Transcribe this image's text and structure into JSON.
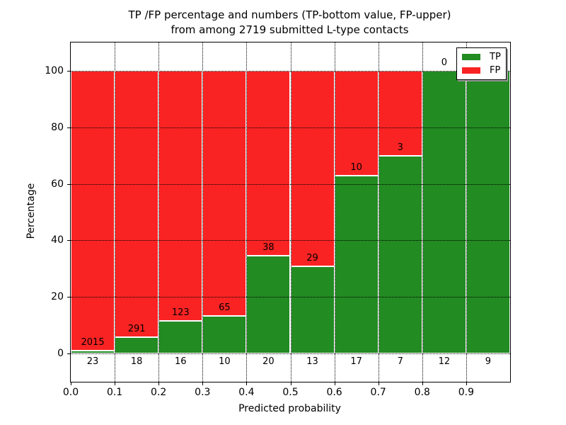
{
  "title": {
    "line1": "TP /FP percentage and numbers (TP-bottom value, FP-upper)",
    "line2": "from among 2719 submitted L-type contacts"
  },
  "axes": {
    "x_label": "Predicted probability",
    "y_label": "Percentage",
    "x_ticks": [
      "0.0",
      "0.1",
      "0.2",
      "0.3",
      "0.4",
      "0.5",
      "0.6",
      "0.7",
      "0.8",
      "0.9"
    ],
    "y_ticks": [
      0,
      20,
      40,
      60,
      80,
      100
    ]
  },
  "legend": {
    "position": "upper right",
    "entries": [
      {
        "label": "TP",
        "color": "#228b22"
      },
      {
        "label": "FP",
        "color": "#fa2323"
      }
    ]
  },
  "colors": {
    "tp_green": "#228b22",
    "fp_red": "#fa2323",
    "grid": "#000000",
    "background": "#ffffff"
  },
  "chart_data": {
    "type": "bar",
    "stacked": true,
    "title": "TP /FP percentage and numbers (TP-bottom value, FP-upper) from among 2719 submitted L-type contacts",
    "xlabel": "Predicted probability",
    "ylabel": "Percentage",
    "total_contacts": 2719,
    "bin_edges": [
      0.0,
      0.1,
      0.2,
      0.3,
      0.4,
      0.5,
      0.6,
      0.7,
      0.8,
      0.9,
      1.0
    ],
    "series": [
      {
        "name": "TP",
        "color": "#228b22",
        "counts": [
          23,
          18,
          16,
          10,
          20,
          13,
          17,
          7,
          12,
          9
        ],
        "percent": [
          1.1,
          5.8,
          11.5,
          13.3,
          34.5,
          31.0,
          63.0,
          70.0,
          100.0,
          100.0
        ]
      },
      {
        "name": "FP",
        "color": "#fa2323",
        "counts": [
          2015,
          291,
          123,
          65,
          38,
          29,
          10,
          3,
          0,
          0
        ],
        "percent": [
          98.9,
          94.2,
          88.5,
          86.7,
          65.5,
          69.0,
          37.0,
          30.0,
          0.0,
          0.0
        ]
      }
    ],
    "bar_unit": "percent of bin total (TP bottom, FP top, stacked to 100)",
    "xlim": [
      0.0,
      1.0
    ],
    "ylim": [
      -10,
      110
    ],
    "grid": "dotted",
    "legend_position": "upper right"
  }
}
